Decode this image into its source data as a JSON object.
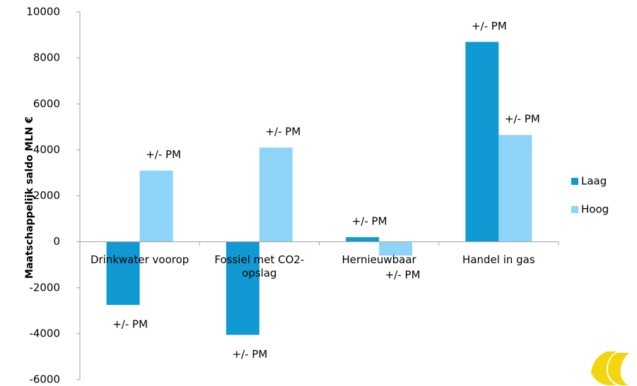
{
  "chart_data": {
    "type": "bar",
    "y_label": "Maatschappelijk saldo MLN €",
    "categories": [
      "Drinkwater voorop",
      "Fossiel met CO2-opslag",
      "Hernieuwbaar",
      "Handel in gas"
    ],
    "series": [
      {
        "name": "Laag",
        "color": "#1199d3",
        "values": [
          -2750,
          -4050,
          200,
          8700
        ],
        "value_labels": [
          "+/- PM",
          "+/- PM",
          "+/- PM",
          "+/- PM"
        ]
      },
      {
        "name": "Hoog",
        "color": "#8ed4f8",
        "values": [
          3100,
          4100,
          -600,
          4650
        ],
        "value_labels": [
          "+/- PM",
          "+/- PM",
          "+/- PM",
          "+/- PM"
        ]
      }
    ],
    "ylim": [
      -6000,
      10000
    ],
    "yticks": [
      -6000,
      -4000,
      -2000,
      0,
      2000,
      4000,
      6000,
      8000,
      10000
    ],
    "grid": false,
    "legend": "right"
  }
}
